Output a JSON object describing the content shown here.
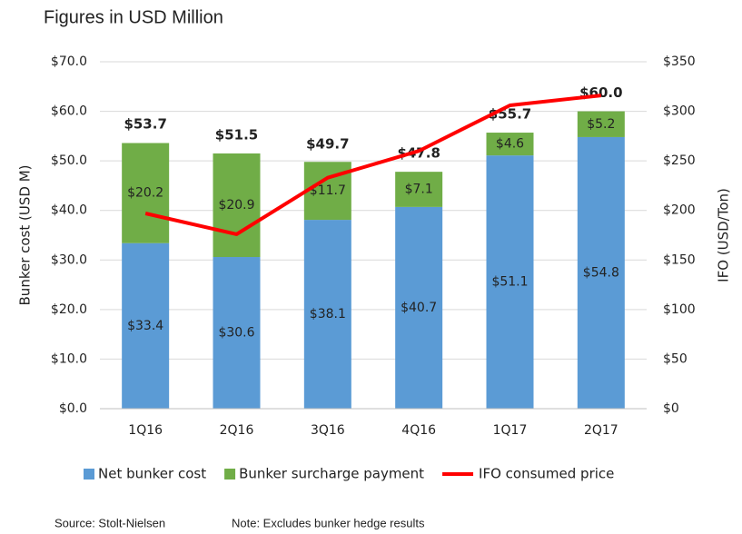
{
  "chart_data": {
    "type": "bar",
    "stacked": true,
    "title": "Figures in USD Million",
    "ylabel": "Bunker cost (USD M)",
    "y2label": "IFO (USD/Ton)",
    "categories": [
      "1Q16",
      "2Q16",
      "3Q16",
      "4Q16",
      "1Q17",
      "2Q17"
    ],
    "series": [
      {
        "name": "Net bunker cost",
        "color": "#5b9bd5",
        "values": [
          33.4,
          30.6,
          38.1,
          40.7,
          51.1,
          54.8
        ],
        "value_labels": [
          "$33.4",
          "$30.6",
          "$38.1",
          "$40.7",
          "$51.1",
          "$54.8"
        ]
      },
      {
        "name": "Bunker surcharge payment",
        "color": "#70ad47",
        "values": [
          20.2,
          20.9,
          11.7,
          7.1,
          4.6,
          5.2
        ],
        "value_labels": [
          "$20.2",
          "$20.9",
          "$11.7",
          "$7.1",
          "$4.6",
          "$5.2"
        ]
      },
      {
        "name": "IFO consumed price",
        "color": "#ff0000",
        "type": "line",
        "axis": "y2",
        "values": [
          197,
          176,
          233,
          260,
          306,
          316
        ]
      }
    ],
    "totals": [
      53.7,
      51.5,
      49.7,
      47.8,
      55.7,
      60.0
    ],
    "total_labels": [
      "$53.7",
      "$51.5",
      "$49.7",
      "$47.8",
      "$55.7",
      "$60.0"
    ],
    "ylim": [
      0,
      70
    ],
    "yticks": [
      {
        "value": 0,
        "label": "$0.0"
      },
      {
        "value": 10,
        "label": "$10.0"
      },
      {
        "value": 20,
        "label": "$20.0"
      },
      {
        "value": 30,
        "label": "$30.0"
      },
      {
        "value": 40,
        "label": "$40.0"
      },
      {
        "value": 50,
        "label": "$50.0"
      },
      {
        "value": 60,
        "label": "$60.0"
      },
      {
        "value": 70,
        "label": "$70.0"
      }
    ],
    "y2lim": [
      0,
      350
    ],
    "y2ticks": [
      {
        "value": 0,
        "label": "$0"
      },
      {
        "value": 50,
        "label": "$50"
      },
      {
        "value": 100,
        "label": "$100"
      },
      {
        "value": 150,
        "label": "$150"
      },
      {
        "value": 200,
        "label": "$200"
      },
      {
        "value": 250,
        "label": "$250"
      },
      {
        "value": 300,
        "label": "$300"
      },
      {
        "value": 350,
        "label": "$350"
      }
    ],
    "grid": true,
    "legend": "bottom",
    "source": "Source:  Stolt-Nielsen",
    "note": "Note: Excludes bunker hedge results"
  }
}
